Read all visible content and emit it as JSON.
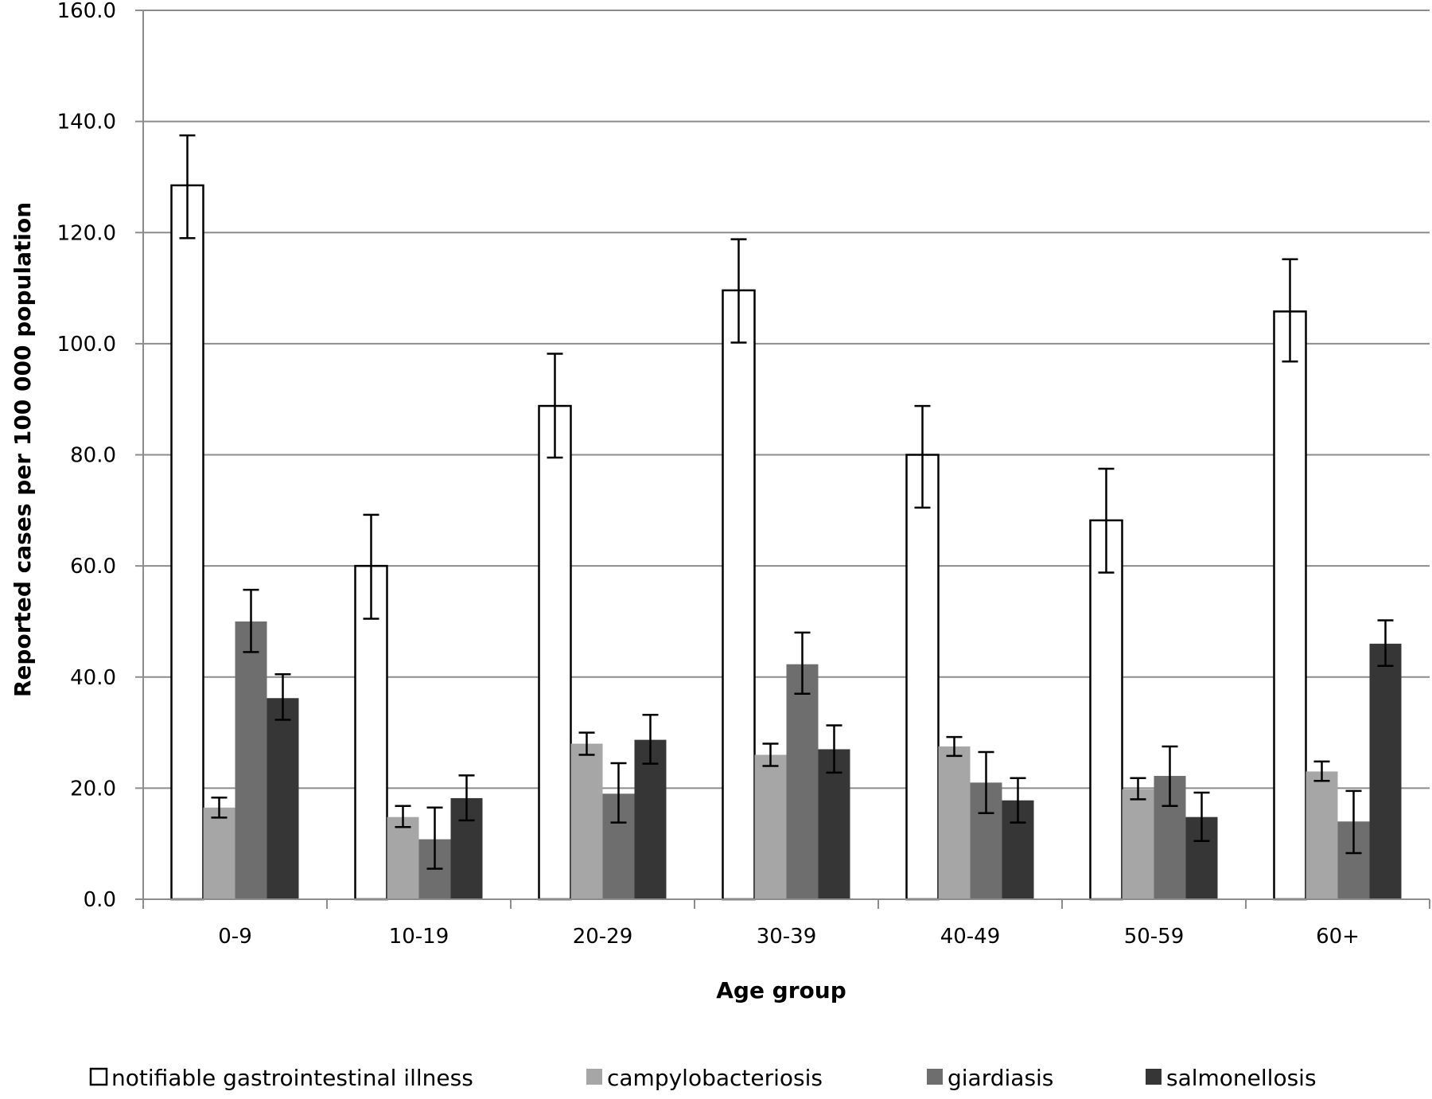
{
  "chart_data": {
    "type": "bar",
    "title": "",
    "xlabel": "Age group",
    "ylabel": "Reported cases per 100 000 population",
    "ylim": [
      0,
      160
    ],
    "yticks": [
      "0.0",
      "20.0",
      "40.0",
      "60.0",
      "80.0",
      "100.0",
      "120.0",
      "140.0",
      "160.0"
    ],
    "ytick_values": [
      0,
      20,
      40,
      60,
      80,
      100,
      120,
      140,
      160
    ],
    "grid": true,
    "legend_position": "bottom",
    "categories": [
      "0-9",
      "10-19",
      "20-29",
      "30-39",
      "40-49",
      "50-59",
      "60+"
    ],
    "series": [
      {
        "name": "notifiable gastrointestinal  illness",
        "color": "#ffffff",
        "values": [
          128.5,
          60.0,
          88.8,
          109.6,
          80.0,
          68.2,
          105.8
        ],
        "error_low": [
          119.0,
          50.5,
          79.5,
          100.2,
          70.5,
          58.8,
          96.8
        ],
        "error_high": [
          137.5,
          69.2,
          98.2,
          118.8,
          88.8,
          77.5,
          115.2
        ]
      },
      {
        "name": "campylobacteriosis",
        "color": "#a6a6a6",
        "values": [
          16.5,
          14.8,
          28.0,
          26.0,
          27.5,
          19.8,
          23.0
        ],
        "error_low": [
          14.7,
          13.0,
          26.0,
          24.0,
          25.8,
          18.0,
          21.3
        ],
        "error_high": [
          18.3,
          16.8,
          30.0,
          28.0,
          29.2,
          21.8,
          24.8
        ]
      },
      {
        "name": "giardiasis",
        "color": "#6e6e6e",
        "values": [
          50.0,
          10.8,
          19.0,
          42.3,
          21.0,
          22.2,
          14.0
        ],
        "error_low": [
          44.5,
          5.5,
          13.8,
          37.0,
          15.5,
          16.8,
          8.3
        ],
        "error_high": [
          55.7,
          16.5,
          24.5,
          48.0,
          26.5,
          27.5,
          19.5
        ]
      },
      {
        "name": "salmonellosis",
        "color": "#363636",
        "values": [
          36.2,
          18.2,
          28.7,
          27.0,
          17.8,
          14.8,
          46.0
        ],
        "error_low": [
          32.3,
          14.2,
          24.4,
          22.8,
          13.8,
          10.5,
          42.0
        ],
        "error_high": [
          40.5,
          22.3,
          33.2,
          31.3,
          21.8,
          19.2,
          50.2
        ]
      }
    ]
  }
}
